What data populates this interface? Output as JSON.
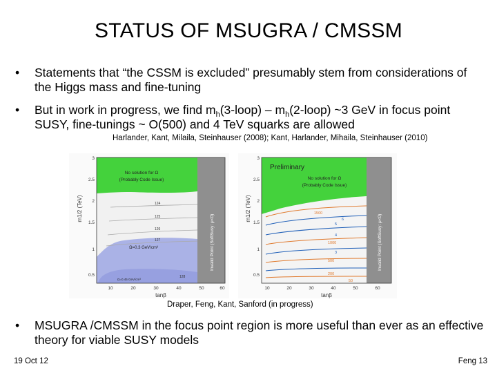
{
  "slide": {
    "title": "STATUS OF MSUGRA / CMSSM",
    "bullets": [
      {
        "marker": "•",
        "text": "Statements that “the CSSM is excluded” presumably stem from considerations of the Higgs mass and fine-tuning"
      },
      {
        "marker": "•",
        "pre": "But in work in progress, we find m",
        "sub1": "h",
        "mid": "(3-loop) – m",
        "sub2": "h",
        "post": "(2-loop) ~3 GeV in focus point SUSY, fine-tunings ~ O(500) and 4 TeV squarks are allowed"
      },
      {
        "marker": "•",
        "text": "MSUGRA /CMSSM in the focus point region is more useful than ever as an effective theory for viable SUSY models"
      }
    ],
    "citation_top": "Harlander, Kant, Milaila, Steinhauser (2008); Kant, Harlander, Mihaila, Steinhauser (2010)",
    "citation_bottom": "Draper, Feng, Kant, Sanford (in progress)",
    "footer_left": "19 Oct 12",
    "footer_right": "Feng 13"
  },
  "plots": {
    "left": {
      "ylabel": "m1/2 (TeV)",
      "xlabel": "tanβ",
      "y_ticks": [
        "3",
        "2.5",
        "2",
        "1.5",
        "1",
        "0.5"
      ],
      "x_ticks": [
        "10",
        "20",
        "30",
        "40",
        "50",
        "60"
      ],
      "green_label_1": "No solution for Ω",
      "green_label_2": "(Probably Code Issue)",
      "invalid_label": "Invalid Point (SoftSusy: μ<0)",
      "contour_label": "Ω=0.3 GeV/cm³",
      "bottom_label": "Ω=0.45 GeV/cm³",
      "contour_values": [
        "124",
        "125",
        "126",
        "127",
        "128"
      ]
    },
    "right": {
      "ylabel": "m1/2 (TeV)",
      "xlabel": "tanβ",
      "y_ticks": [
        "3",
        "2.5",
        "2",
        "1.5",
        "1",
        "0.5"
      ],
      "x_ticks": [
        "10",
        "20",
        "30",
        "40",
        "50",
        "60"
      ],
      "preliminary": "Preliminary",
      "green_label_1": "No solution for Ω",
      "green_label_2": "(Probably Code Issue)",
      "invalid_label": "Invalid Point (SoftSusy: μ<0)",
      "contour_values": [
        "1500",
        "1000",
        "500",
        "200",
        "50",
        "6",
        "5",
        "4",
        "3"
      ]
    },
    "colors": {
      "green": "#44d23c",
      "gray": "#8f8f8f",
      "plot_bg": "#f4f4f4",
      "blue_region": "#aab2e6",
      "blue_line": "#1f5fb8",
      "orange_line": "#e07a2e"
    }
  }
}
